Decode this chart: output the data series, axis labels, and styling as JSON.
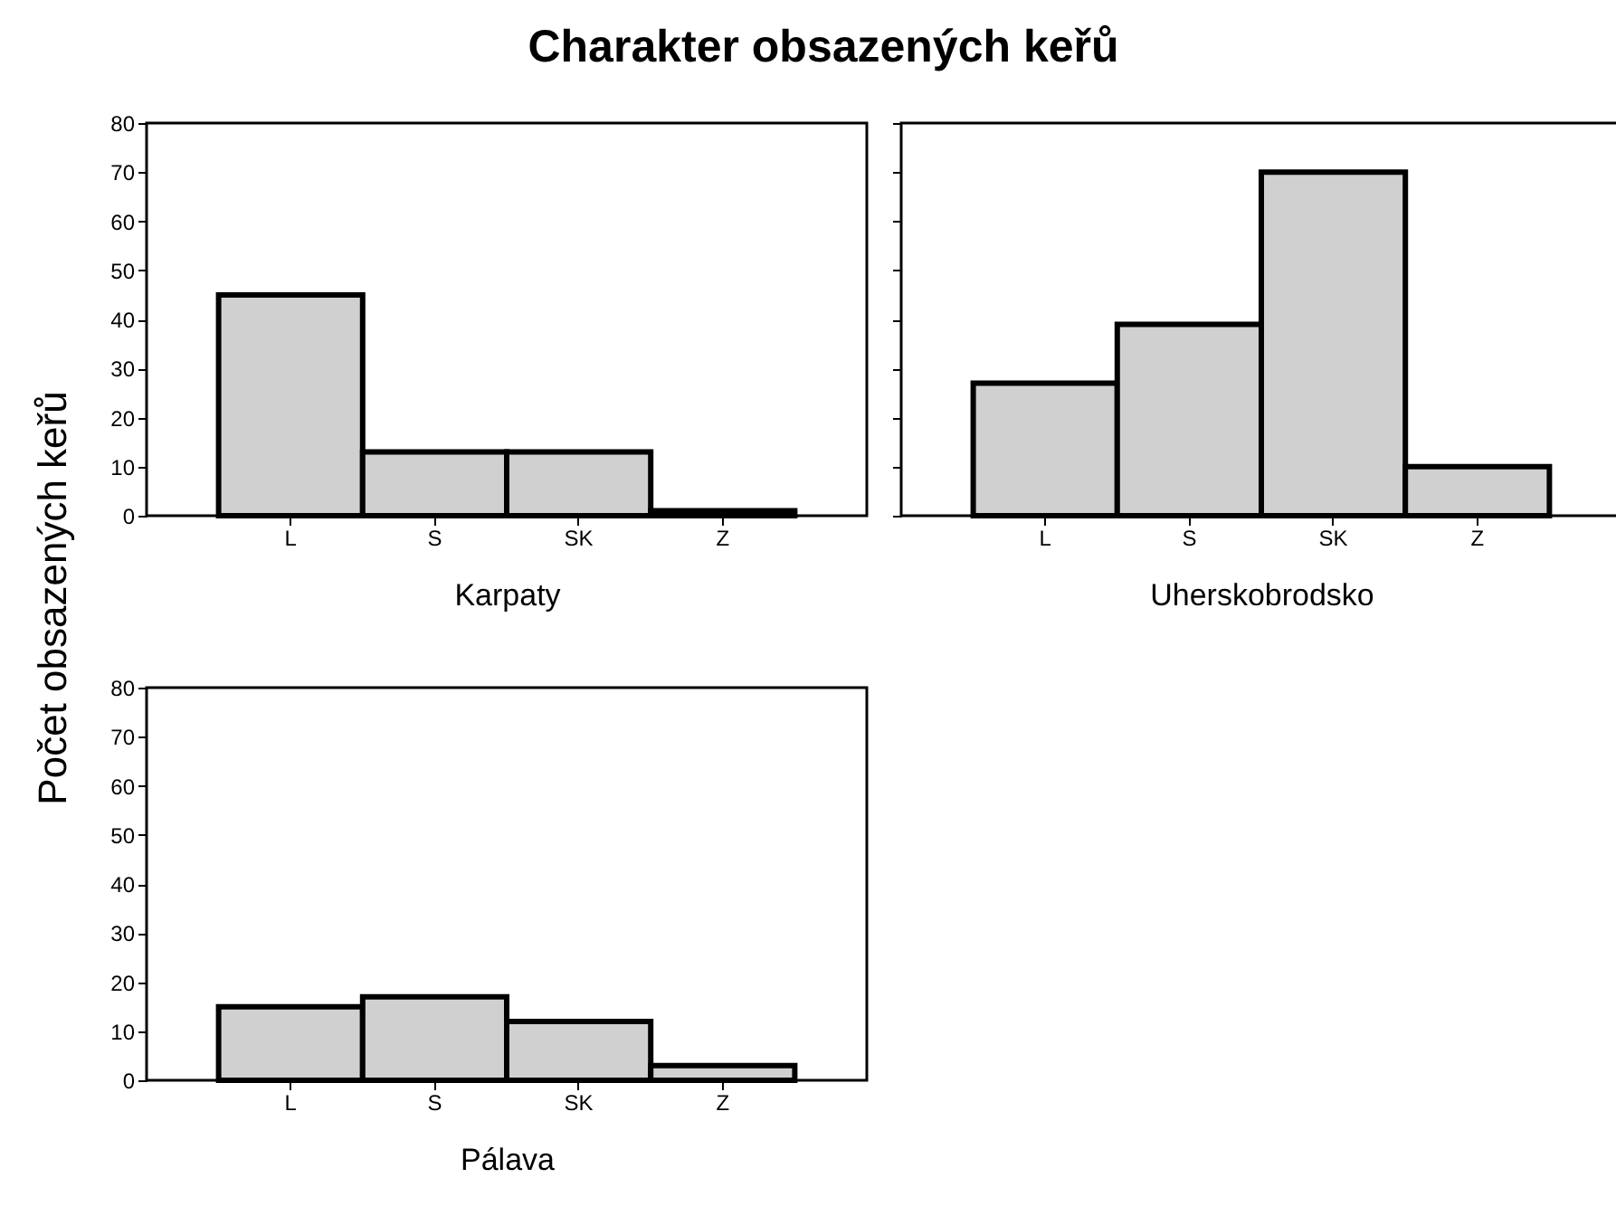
{
  "chart_data": [
    {
      "type": "bar",
      "title": "Charakter obsazených keřů",
      "ylabel": "Počet obsazených keřů",
      "xlabel": "Karpaty",
      "categories": [
        "L",
        "S",
        "SK",
        "Z"
      ],
      "values": [
        45,
        13,
        13,
        1
      ],
      "color": "#d0d0d0",
      "ylim": [
        0,
        80
      ],
      "yticks": [
        0,
        10,
        20,
        30,
        40,
        50,
        60,
        70,
        80
      ],
      "grid": false
    },
    {
      "type": "bar",
      "xlabel": "Uherskobrodsko",
      "categories": [
        "L",
        "S",
        "SK",
        "Z"
      ],
      "values": [
        27,
        39,
        70,
        10
      ],
      "color": "#d0d0d0",
      "ylim": [
        0,
        80
      ],
      "yticks": [
        0,
        10,
        20,
        30,
        40,
        50,
        60,
        70,
        80
      ],
      "grid": false,
      "tick_labels": "x"
    },
    {
      "type": "bar",
      "xlabel": "Pálava",
      "categories": [
        "L",
        "S",
        "SK",
        "Z"
      ],
      "values": [
        15,
        17,
        12,
        3
      ],
      "color": "#d0d0d0",
      "ylim": [
        0,
        80
      ],
      "yticks": [
        0,
        10,
        20,
        30,
        40,
        50,
        60,
        70,
        80
      ],
      "grid": false
    }
  ]
}
